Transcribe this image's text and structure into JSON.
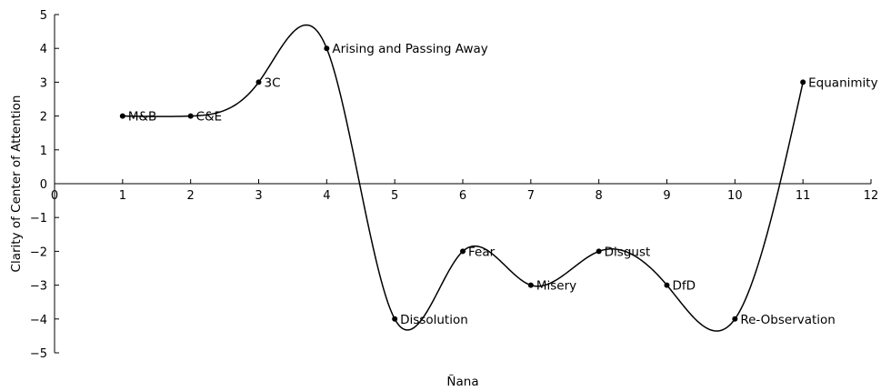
{
  "chart_data": {
    "type": "line",
    "title": "",
    "xlabel": "Ñana",
    "ylabel": "Clarity of Center of Attention",
    "xlim": [
      0,
      12
    ],
    "ylim": [
      -5,
      5
    ],
    "x_ticks": [
      "0",
      "1",
      "2",
      "3",
      "4",
      "5",
      "6",
      "7",
      "8",
      "9",
      "10",
      "11",
      "12"
    ],
    "y_ticks": [
      "5",
      "4",
      "3",
      "2",
      "1",
      "0",
      "−1",
      "−2",
      "−3",
      "−4",
      "−5"
    ],
    "curve": "smooth spline through labeled points",
    "grid": false,
    "points": [
      {
        "x": 1,
        "y": 2,
        "label": "M&B"
      },
      {
        "x": 2,
        "y": 2,
        "label": "C&E"
      },
      {
        "x": 3,
        "y": 3,
        "label": "3C"
      },
      {
        "x": 4,
        "y": 4,
        "label": "Arising and Passing Away"
      },
      {
        "x": 5,
        "y": -4,
        "label": "Dissolution"
      },
      {
        "x": 6,
        "y": -2,
        "label": "Fear"
      },
      {
        "x": 7,
        "y": -3,
        "label": "Misery"
      },
      {
        "x": 8,
        "y": -2,
        "label": "Disgust"
      },
      {
        "x": 9,
        "y": -3,
        "label": "DfD"
      },
      {
        "x": 10,
        "y": -4,
        "label": "Re-Observation"
      },
      {
        "x": 11,
        "y": 3,
        "label": "Equanimity"
      }
    ]
  }
}
